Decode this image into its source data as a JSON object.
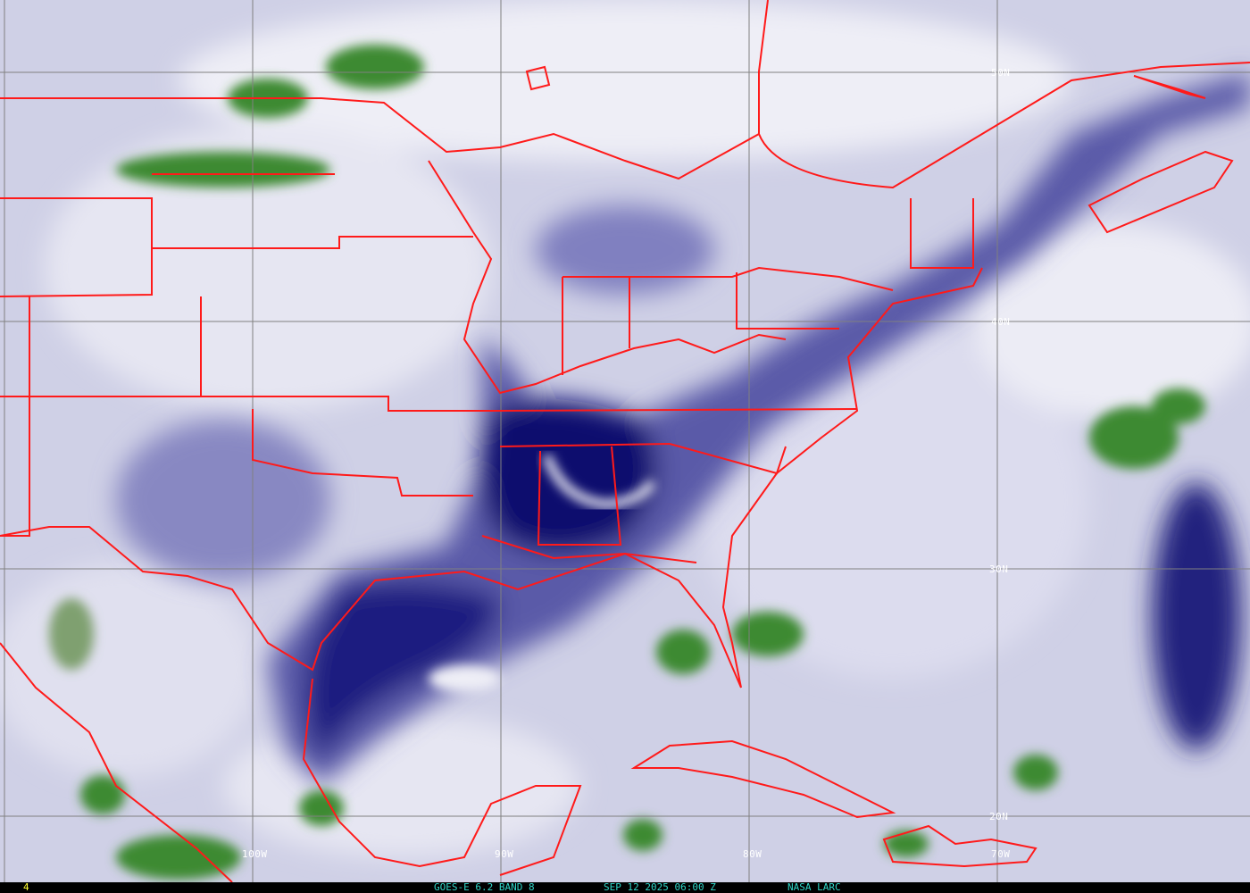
{
  "image": {
    "product": "GOES-E 6.2 BAND 8",
    "datetime": "SEP 12 2025 06:00 Z",
    "source": "NASA LARC",
    "frame_number": "4"
  },
  "grid": {
    "longitudes": [
      "100W",
      "90W",
      "80W",
      "70W"
    ],
    "latitudes": [
      "50N",
      "40N",
      "30N",
      "20N"
    ]
  },
  "colors": {
    "border": "#ff1a1a",
    "grid": "#808080",
    "dry": "#1a1a7a",
    "moist": "#d8d8ea",
    "cloud": "#3a8a2a",
    "label": "#2fd6c8",
    "frame_label": "#ffff33"
  }
}
